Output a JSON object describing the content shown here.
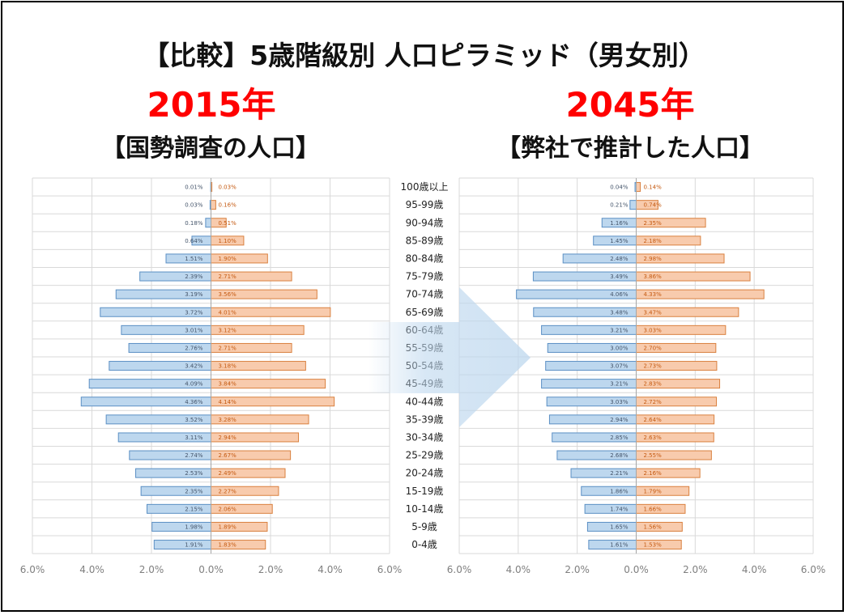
{
  "title": "【比較】5歳階級別 人口ピラミッド（男女別）",
  "colors": {
    "male_fill": "#bdd7ee",
    "male_stroke": "#5b8fc4",
    "female_fill": "#f8cbad",
    "female_stroke": "#d9803f",
    "year": "#ff0000",
    "arrow": "#bdd7ee"
  },
  "chart_data": [
    {
      "type": "bar",
      "orientation": "horizontal-pyramid",
      "title": "2015年",
      "subtitle": "【国勢調査の人口】",
      "categories": [
        "100歳以上",
        "95-99歳",
        "90-94歳",
        "85-89歳",
        "80-84歳",
        "75-79歳",
        "70-74歳",
        "65-69歳",
        "60-64歳",
        "55-59歳",
        "50-54歳",
        "45-49歳",
        "40-44歳",
        "35-39歳",
        "30-34歳",
        "25-29歳",
        "20-24歳",
        "15-19歳",
        "10-14歳",
        "5-9歳",
        "0-4歳"
      ],
      "series": [
        {
          "side": "left",
          "values": [
            0.01,
            0.03,
            0.18,
            0.64,
            1.51,
            2.39,
            3.19,
            3.72,
            3.01,
            2.76,
            3.42,
            4.09,
            4.36,
            3.52,
            3.11,
            2.74,
            2.53,
            2.35,
            2.15,
            1.98,
            1.91
          ],
          "labels": [
            "0.01%",
            "0.03%",
            "0.18%",
            "0.64%",
            "1.51%",
            "2.39%",
            "3.19%",
            "3.72%",
            "3.01%",
            "2.76%",
            "3.42%",
            "4.09%",
            "4.36%",
            "3.52%",
            "3.11%",
            "2.74%",
            "2.53%",
            "2.35%",
            "2.15%",
            "1.98%",
            "1.91%"
          ]
        },
        {
          "side": "right",
          "values": [
            0.03,
            0.16,
            0.51,
            1.1,
            1.9,
            2.71,
            3.56,
            4.01,
            3.12,
            2.71,
            3.18,
            3.84,
            4.14,
            3.28,
            2.94,
            2.67,
            2.49,
            2.27,
            2.06,
            1.89,
            1.83
          ],
          "labels": [
            "0.03%",
            "0.16%",
            "0.51%",
            "1.10%",
            "1.90%",
            "2.71%",
            "3.56%",
            "4.01%",
            "3.12%",
            "2.71%",
            "3.18%",
            "3.84%",
            "4.14%",
            "3.28%",
            "2.94%",
            "2.67%",
            "2.49%",
            "2.27%",
            "2.06%",
            "1.89%",
            "1.83%"
          ]
        }
      ],
      "xlim": [
        -6,
        6
      ],
      "xticks": [
        "6.0%",
        "4.0%",
        "2.0%",
        "0.0%",
        "2.0%",
        "4.0%",
        "6.0%"
      ],
      "grid": true
    },
    {
      "type": "bar",
      "orientation": "horizontal-pyramid",
      "title": "2045年",
      "subtitle": "【弊社で推計した人口】",
      "categories": [
        "100歳以上",
        "95-99歳",
        "90-94歳",
        "85-89歳",
        "80-84歳",
        "75-79歳",
        "70-74歳",
        "65-69歳",
        "60-64歳",
        "55-59歳",
        "50-54歳",
        "45-49歳",
        "40-44歳",
        "35-39歳",
        "30-34歳",
        "25-29歳",
        "20-24歳",
        "15-19歳",
        "10-14歳",
        "5-9歳",
        "0-4歳"
      ],
      "series": [
        {
          "side": "left",
          "values": [
            0.04,
            0.21,
            1.16,
            1.45,
            2.48,
            3.49,
            4.06,
            3.48,
            3.21,
            3.0,
            3.07,
            3.21,
            3.03,
            2.94,
            2.85,
            2.68,
            2.21,
            1.86,
            1.74,
            1.65,
            1.61
          ],
          "labels": [
            "0.04%",
            "0.21%",
            "1.16%",
            "1.45%",
            "2.48%",
            "3.49%",
            "4.06%",
            "3.48%",
            "3.21%",
            "3.00%",
            "3.07%",
            "3.21%",
            "3.03%",
            "2.94%",
            "2.85%",
            "2.68%",
            "2.21%",
            "1.86%",
            "1.74%",
            "1.65%",
            "1.61%"
          ]
        },
        {
          "side": "right",
          "values": [
            0.14,
            0.74,
            2.35,
            2.18,
            2.98,
            3.86,
            4.33,
            3.47,
            3.03,
            2.7,
            2.73,
            2.83,
            2.72,
            2.64,
            2.63,
            2.55,
            2.16,
            1.79,
            1.66,
            1.56,
            1.53
          ],
          "labels": [
            "0.14%",
            "0.74%",
            "2.35%",
            "2.18%",
            "2.98%",
            "3.86%",
            "4.33%",
            "3.47%",
            "3.03%",
            "2.70%",
            "2.73%",
            "2.83%",
            "2.72%",
            "2.64%",
            "2.63%",
            "2.55%",
            "2.16%",
            "1.79%",
            "1.66%",
            "1.56%",
            "1.53%"
          ]
        }
      ],
      "xlim": [
        -6,
        6
      ],
      "xticks": [
        "6.0%",
        "4.0%",
        "2.0%",
        "0.0%",
        "2.0%",
        "4.0%",
        "6.0%"
      ],
      "grid": true
    }
  ]
}
